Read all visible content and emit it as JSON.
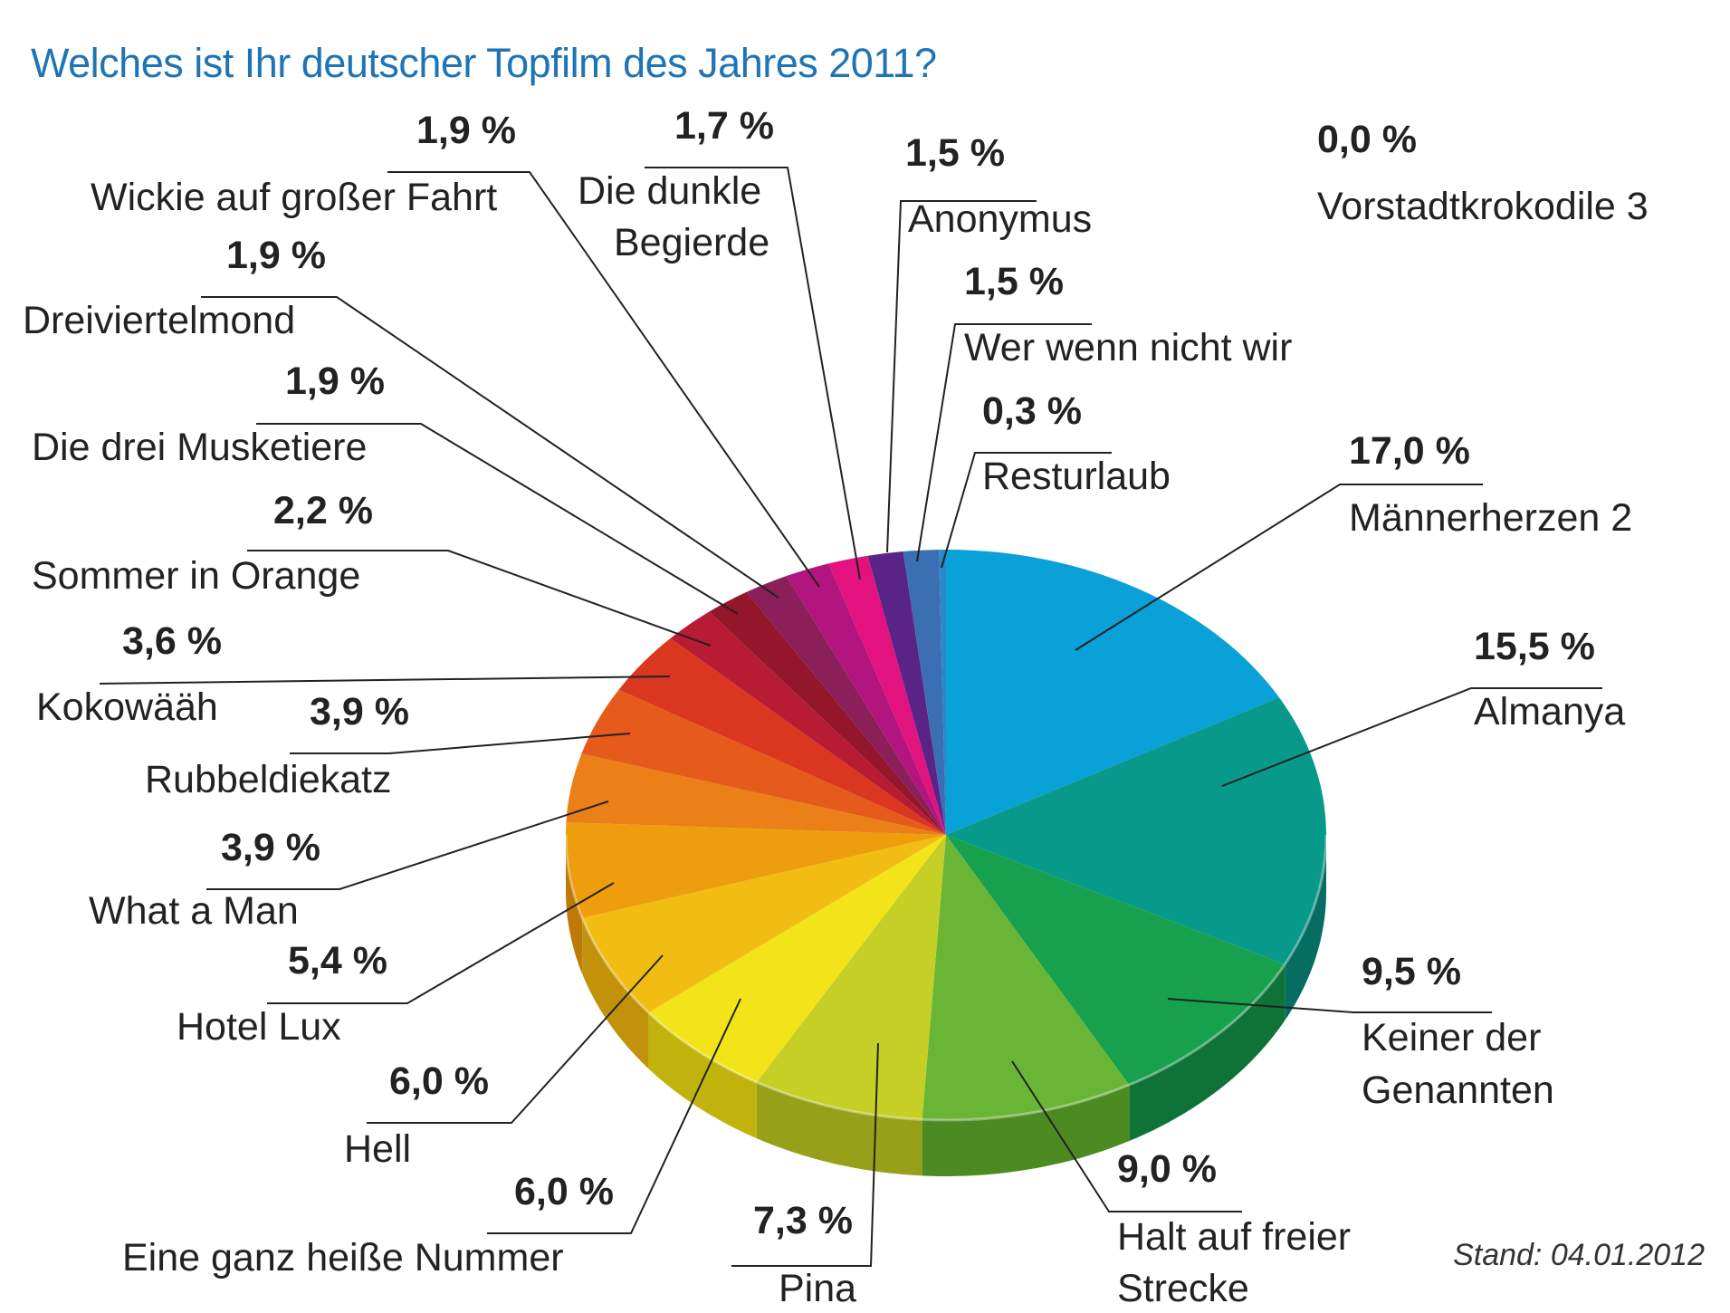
{
  "chart_data": {
    "type": "pie",
    "title": "Welches ist Ihr deutscher Topfilm des Jahres 2011?",
    "note": "Stand: 04.01.2012",
    "unit": "%",
    "slices": [
      {
        "name": "Männerherzen 2",
        "value": 17.0,
        "label": "17,0 %",
        "color": "#0aa0d8",
        "side_color": "#06739c"
      },
      {
        "name": "Almanya",
        "value": 15.5,
        "label": "15,5 %",
        "color": "#079a8a",
        "side_color": "#056d62"
      },
      {
        "name": "Keiner der Genannten",
        "value": 9.5,
        "label": "9,5 %",
        "color": "#17a04e",
        "side_color": "#0f7337"
      },
      {
        "name": "Halt auf freier Strecke",
        "value": 9.0,
        "label": "9,0 %",
        "color": "#6bb536",
        "side_color": "#4c8a22"
      },
      {
        "name": "Pina",
        "value": 7.3,
        "label": "7,3 %",
        "color": "#c6cf25",
        "side_color": "#97a019"
      },
      {
        "name": "Eine ganz heiße Nummer",
        "value": 6.0,
        "label": "6,0 %",
        "color": "#f2e419",
        "side_color": "#c0b30c"
      },
      {
        "name": "Hell",
        "value": 6.0,
        "label": "6,0 %",
        "color": "#f1bd12",
        "side_color": "#c1920a"
      },
      {
        "name": "Hotel Lux",
        "value": 5.4,
        "label": "5,4 %",
        "color": "#ee9d0d",
        "side_color": "#bd7a07"
      },
      {
        "name": "What a Man",
        "value": 3.9,
        "label": "3,9 %",
        "color": "#eb7f18",
        "side_color": "#b9600d"
      },
      {
        "name": "Rubbeldiekatz",
        "value": 3.9,
        "label": "3,9 %",
        "color": "#e65a1b",
        "side_color": "#b2420f"
      },
      {
        "name": "Kokowääh",
        "value": 3.6,
        "label": "3,6 %",
        "color": "#d9371f",
        "side_color": "#a62713"
      },
      {
        "name": "Sommer in Orange",
        "value": 2.2,
        "label": "2,2 %",
        "color": "#b81c34",
        "side_color": "#8a1224"
      },
      {
        "name": "Die drei Musketiere",
        "value": 1.9,
        "label": "1,9 %",
        "color": "#93162a",
        "side_color": "#6d0e1d"
      },
      {
        "name": "Dreiviertelmond",
        "value": 1.9,
        "label": "1,9 %",
        "color": "#8a1f5a",
        "side_color": "#661543"
      },
      {
        "name": "Wickie auf großer Fahrt",
        "value": 1.9,
        "label": "1,9 %",
        "color": "#b2157e",
        "side_color": "#860f5e"
      },
      {
        "name": "Die dunkle Begierde",
        "value": 1.7,
        "label": "1,7 %",
        "color": "#e2127f",
        "side_color": "#ac0c5f"
      },
      {
        "name": "Anonymus",
        "value": 1.5,
        "label": "1,5 %",
        "color": "#5a2486",
        "side_color": "#401864"
      },
      {
        "name": "Wer wenn nicht wir",
        "value": 1.5,
        "label": "1,5 %",
        "color": "#3b6fb4",
        "side_color": "#2a5187"
      },
      {
        "name": "Resturlaub",
        "value": 0.3,
        "label": "0,3 %",
        "color": "#2b88c9",
        "side_color": "#1e6597"
      },
      {
        "name": "Vorstadtkrokodile 3",
        "value": 0.0,
        "label": "0,0 %",
        "color": "#0aa0d8",
        "side_color": "#06739c"
      }
    ]
  }
}
